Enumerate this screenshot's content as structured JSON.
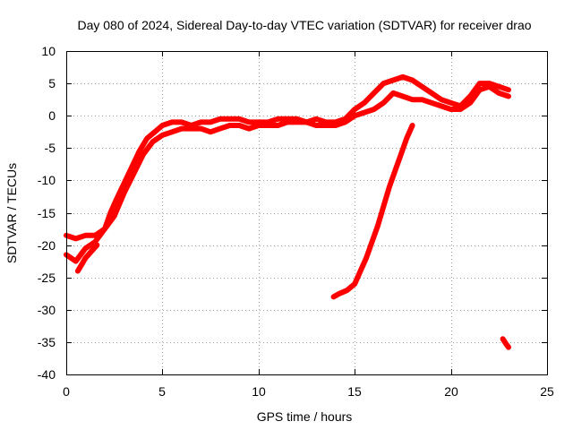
{
  "chart_data": {
    "type": "line",
    "title": "Day 080 of 2024, Sidereal Day-to-day VTEC variation (SDTVAR) for receiver drao",
    "xlabel": "GPS time / hours",
    "ylabel": "SDTVAR / TECUs",
    "xlim": [
      0,
      25
    ],
    "ylim": [
      -40,
      10
    ],
    "xticks": [
      0,
      5,
      10,
      15,
      20,
      25
    ],
    "yticks": [
      -40,
      -35,
      -30,
      -25,
      -20,
      -15,
      -10,
      -5,
      0,
      5,
      10
    ],
    "xtick_labels": [
      "0",
      "5",
      "10",
      "15",
      "20",
      "25"
    ],
    "ytick_labels": [
      "-40",
      "-35",
      "-30",
      "-25",
      "-20",
      "-15",
      "-10",
      "-5",
      "0",
      "5",
      "10"
    ],
    "grid": true,
    "legend": "none",
    "color": "#ff0000",
    "series": [
      {
        "name": "main-upper",
        "x": [
          0.0,
          0.5,
          1.0,
          1.5,
          2.0,
          2.3,
          2.6,
          3.0,
          3.4,
          3.8,
          4.2,
          4.6,
          5.0,
          5.5,
          6.0,
          6.5,
          7.0,
          7.5,
          8.0,
          8.5,
          9.0,
          9.5,
          10.0,
          10.5,
          11.0,
          11.5,
          12.0,
          12.5,
          13.0,
          13.5,
          14.0,
          14.5,
          15.0,
          15.5,
          16.0,
          16.5,
          17.0,
          17.5,
          18.0,
          18.5,
          19.0,
          19.5,
          20.0,
          20.5,
          21.0,
          21.5,
          22.0,
          22.5,
          23.0
        ],
        "y": [
          -18.5,
          -19.0,
          -18.5,
          -18.5,
          -17.5,
          -15.0,
          -13.0,
          -10.5,
          -8.0,
          -5.5,
          -3.5,
          -2.5,
          -1.5,
          -1.0,
          -1.0,
          -1.5,
          -1.0,
          -1.0,
          -0.5,
          -0.5,
          -0.5,
          -1.0,
          -1.0,
          -1.0,
          -0.5,
          -0.5,
          -0.5,
          -1.0,
          -0.5,
          -1.0,
          -1.0,
          -0.5,
          1.0,
          2.0,
          3.5,
          5.0,
          5.5,
          6.0,
          5.5,
          4.5,
          3.5,
          2.5,
          2.0,
          1.5,
          3.0,
          5.0,
          5.0,
          4.5,
          4.0
        ]
      },
      {
        "name": "main-lower",
        "x": [
          0.0,
          0.5,
          1.0,
          1.5,
          2.0,
          2.5,
          3.0,
          3.5,
          4.0,
          4.5,
          5.0,
          5.5,
          6.0,
          6.5,
          7.0,
          7.5,
          8.0,
          8.5,
          9.0,
          9.5,
          10.0,
          10.5,
          11.0,
          11.5,
          12.0,
          12.5,
          13.0,
          13.5,
          14.0,
          14.5,
          15.0,
          15.5,
          16.0,
          16.5,
          17.0,
          17.5,
          18.0,
          18.5,
          19.0,
          19.5,
          20.0,
          20.5,
          21.0,
          21.5,
          22.0,
          22.5,
          23.0
        ],
        "y": [
          -21.5,
          -22.5,
          -20.5,
          -19.5,
          -17.5,
          -15.5,
          -12.0,
          -9.0,
          -6.0,
          -4.0,
          -3.0,
          -2.5,
          -2.0,
          -2.0,
          -2.0,
          -2.5,
          -2.0,
          -1.5,
          -1.5,
          -2.0,
          -1.5,
          -1.5,
          -1.5,
          -1.0,
          -1.0,
          -1.0,
          -1.5,
          -1.5,
          -1.5,
          -1.0,
          0.0,
          0.5,
          1.0,
          2.0,
          3.5,
          3.0,
          2.5,
          2.5,
          2.0,
          1.5,
          1.0,
          1.0,
          2.0,
          4.0,
          4.5,
          3.5,
          3.0
        ]
      },
      {
        "name": "early-dip",
        "x": [
          0.6,
          0.8,
          1.0,
          1.3,
          1.6
        ],
        "y": [
          -24.0,
          -23.0,
          -22.0,
          -21.0,
          -20.0
        ]
      },
      {
        "name": "rising-arc",
        "x": [
          13.9,
          14.2,
          14.6,
          15.0,
          15.3,
          15.6,
          15.9,
          16.2,
          16.5,
          16.8,
          17.1,
          17.4,
          17.7,
          18.0
        ],
        "y": [
          -28.0,
          -27.5,
          -27.0,
          -26.0,
          -24.0,
          -22.0,
          -19.5,
          -17.0,
          -14.0,
          -11.0,
          -8.5,
          -6.0,
          -3.5,
          -1.5
        ]
      },
      {
        "name": "late-fragment",
        "x": [
          22.7,
          22.85,
          23.0
        ],
        "y": [
          -34.5,
          -35.2,
          -35.8
        ]
      }
    ]
  }
}
